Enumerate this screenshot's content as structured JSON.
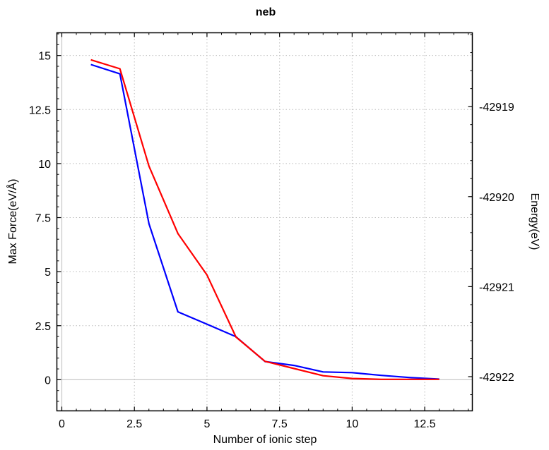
{
  "chart_data": {
    "type": "line",
    "title": "neb",
    "xlabel": "Number of ionic step",
    "ylabel": "Max Force(eV/Å)",
    "y2label": "Energy(eV)",
    "xlim": [
      -0.17,
      14.14
    ],
    "ylim": [
      -1.44,
      16.05
    ],
    "y2lim": [
      -42922.38,
      -42918.18
    ],
    "x_ticks": [
      0,
      2.5,
      5,
      7.5,
      10,
      12.5
    ],
    "x_tick_labels": [
      "0",
      "2.5",
      "5",
      "7.5",
      "10",
      "12.5"
    ],
    "y_ticks": [
      0,
      2.5,
      5,
      7.5,
      10,
      12.5,
      15
    ],
    "y_tick_labels": [
      "0",
      "2.5",
      "5",
      "7.5",
      "10",
      "12.5",
      "15"
    ],
    "y2_ticks": [
      -42922,
      -42921,
      -42920,
      -42919
    ],
    "y2_tick_labels": [
      "-42922",
      "-42921",
      "-42920",
      "-42919"
    ],
    "grid": true,
    "legend": null,
    "x": [
      1,
      2,
      3,
      4,
      5,
      6,
      7,
      8,
      9,
      10,
      11,
      12,
      13
    ],
    "series": [
      {
        "name": "Max Force",
        "axis": "left",
        "color": "#0000ff",
        "values": [
          14.58,
          14.15,
          7.22,
          3.14,
          2.57,
          1.99,
          0.84,
          0.66,
          0.36,
          0.33,
          0.2,
          0.1,
          0.03
        ]
      },
      {
        "name": "Energy",
        "axis": "right",
        "color": "#ff0000",
        "values": [
          -42918.48,
          -42918.58,
          -42919.66,
          -42920.41,
          -42920.87,
          -42921.56,
          -42921.83,
          -42921.91,
          -42921.99,
          -42922.02,
          -42922.03,
          -42922.03,
          -42922.03
        ]
      }
    ]
  }
}
